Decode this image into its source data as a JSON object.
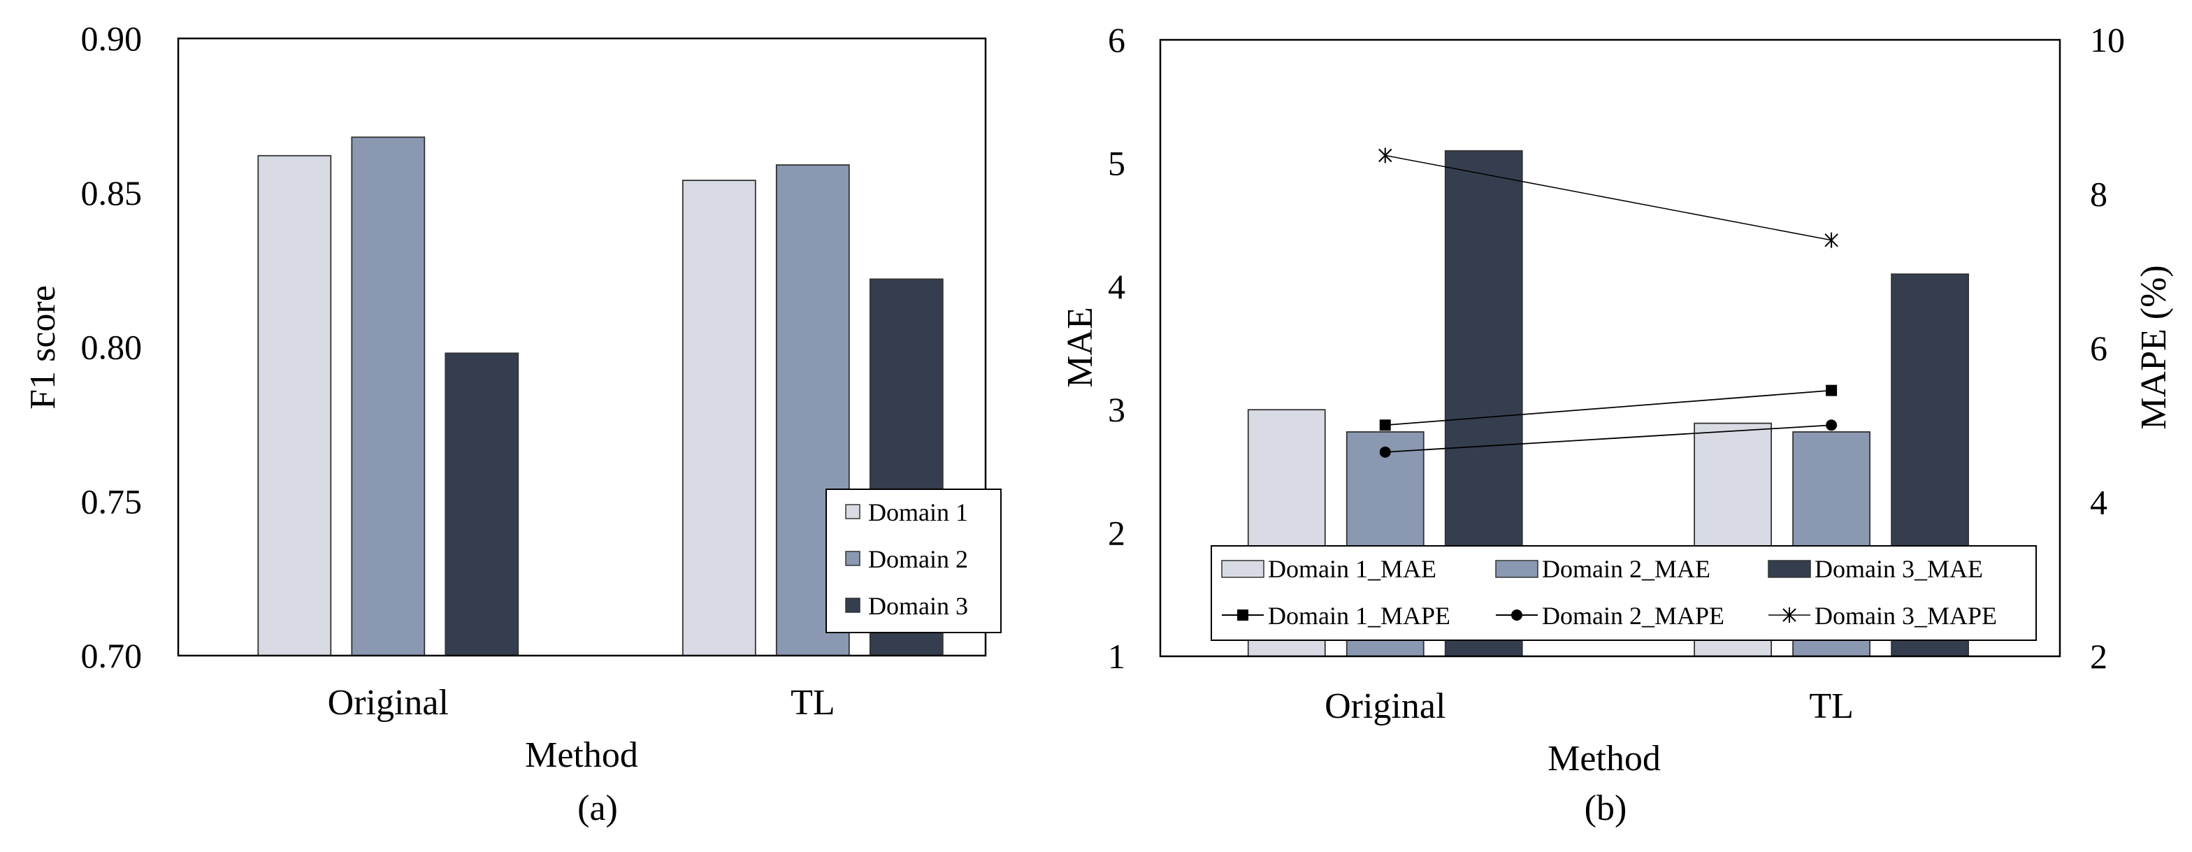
{
  "chart_data": [
    {
      "panel": "(a)",
      "type": "bar",
      "categories": [
        "Original",
        "TL"
      ],
      "series": [
        {
          "name": "Domain 1",
          "values": [
            0.862,
            0.854
          ],
          "color": "#d8dbe3"
        },
        {
          "name": "Domain 2",
          "values": [
            0.868,
            0.859
          ],
          "color": "#8a98b2"
        },
        {
          "name": "Domain 3",
          "values": [
            0.798,
            0.822
          ],
          "color": "#353e4e"
        }
      ],
      "xlabel": "Method",
      "ylabel": "F1 score",
      "ylim": [
        0.7,
        0.9
      ],
      "yticks": [
        "0.70",
        "0.75",
        "0.80",
        "0.85",
        "0.90"
      ],
      "grid": false,
      "legend_position": "bottom-right"
    },
    {
      "panel": "(b)",
      "type": "bar",
      "categories": [
        "Original",
        "TL"
      ],
      "series": [
        {
          "name": "Domain 1_MAE",
          "values": [
            3.0,
            2.89
          ],
          "color": "#d8dbe3",
          "axis": "left"
        },
        {
          "name": "Domain 2_MAE",
          "values": [
            2.82,
            2.82
          ],
          "color": "#8a98b2",
          "axis": "left"
        },
        {
          "name": "Domain 3_MAE",
          "values": [
            5.1,
            4.1
          ],
          "color": "#353e4e",
          "axis": "left"
        }
      ],
      "line_series": [
        {
          "name": "Domain 1_MAPE",
          "values": [
            5.0,
            5.45
          ],
          "marker": "square",
          "axis": "right"
        },
        {
          "name": "Domain 2_MAPE",
          "values": [
            4.65,
            5.0
          ],
          "marker": "circle",
          "axis": "right"
        },
        {
          "name": "Domain 3_MAPE",
          "values": [
            8.5,
            7.4
          ],
          "marker": "star",
          "axis": "right"
        }
      ],
      "xlabel": "Method",
      "ylabel": "MAE",
      "ylabel_right": "MAPE (%)",
      "ylim": [
        1,
        6
      ],
      "ylim_right": [
        2,
        10
      ],
      "yticks": [
        "1",
        "2",
        "3",
        "4",
        "5",
        "6"
      ],
      "yticks_right": [
        "2",
        "4",
        "6",
        "8",
        "10"
      ],
      "grid": false,
      "legend_position": "bottom"
    }
  ]
}
